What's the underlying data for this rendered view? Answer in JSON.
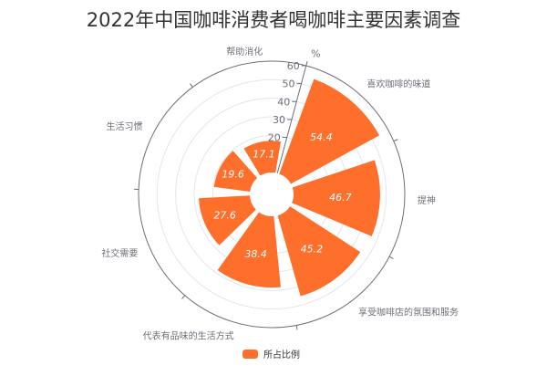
{
  "chart_data": {
    "type": "bar",
    "subtype": "polar",
    "title": "2022年中国咖啡消费者喝咖啡主要因素调查",
    "categories": [
      "喜欢咖啡的味道",
      "提神",
      "享受咖啡店的氛围和服务",
      "代表有品味的生活方式",
      "社交需要",
      "生活习惯",
      "帮助消化"
    ],
    "series": [
      {
        "name": "所占比例",
        "values": [
          54.4,
          46.7,
          45.2,
          38.4,
          27.6,
          19.6,
          17.1
        ]
      }
    ],
    "radial_axis": {
      "unit": "%",
      "range": [
        0,
        60
      ],
      "ticks": [
        20,
        30,
        40,
        50,
        60
      ]
    },
    "legend": "bottom",
    "grid": true,
    "colors": {
      "bar": "#ff6f2c",
      "axis": "#6e7079",
      "grid": "#e0e6f1",
      "label": "#ffffff"
    }
  }
}
